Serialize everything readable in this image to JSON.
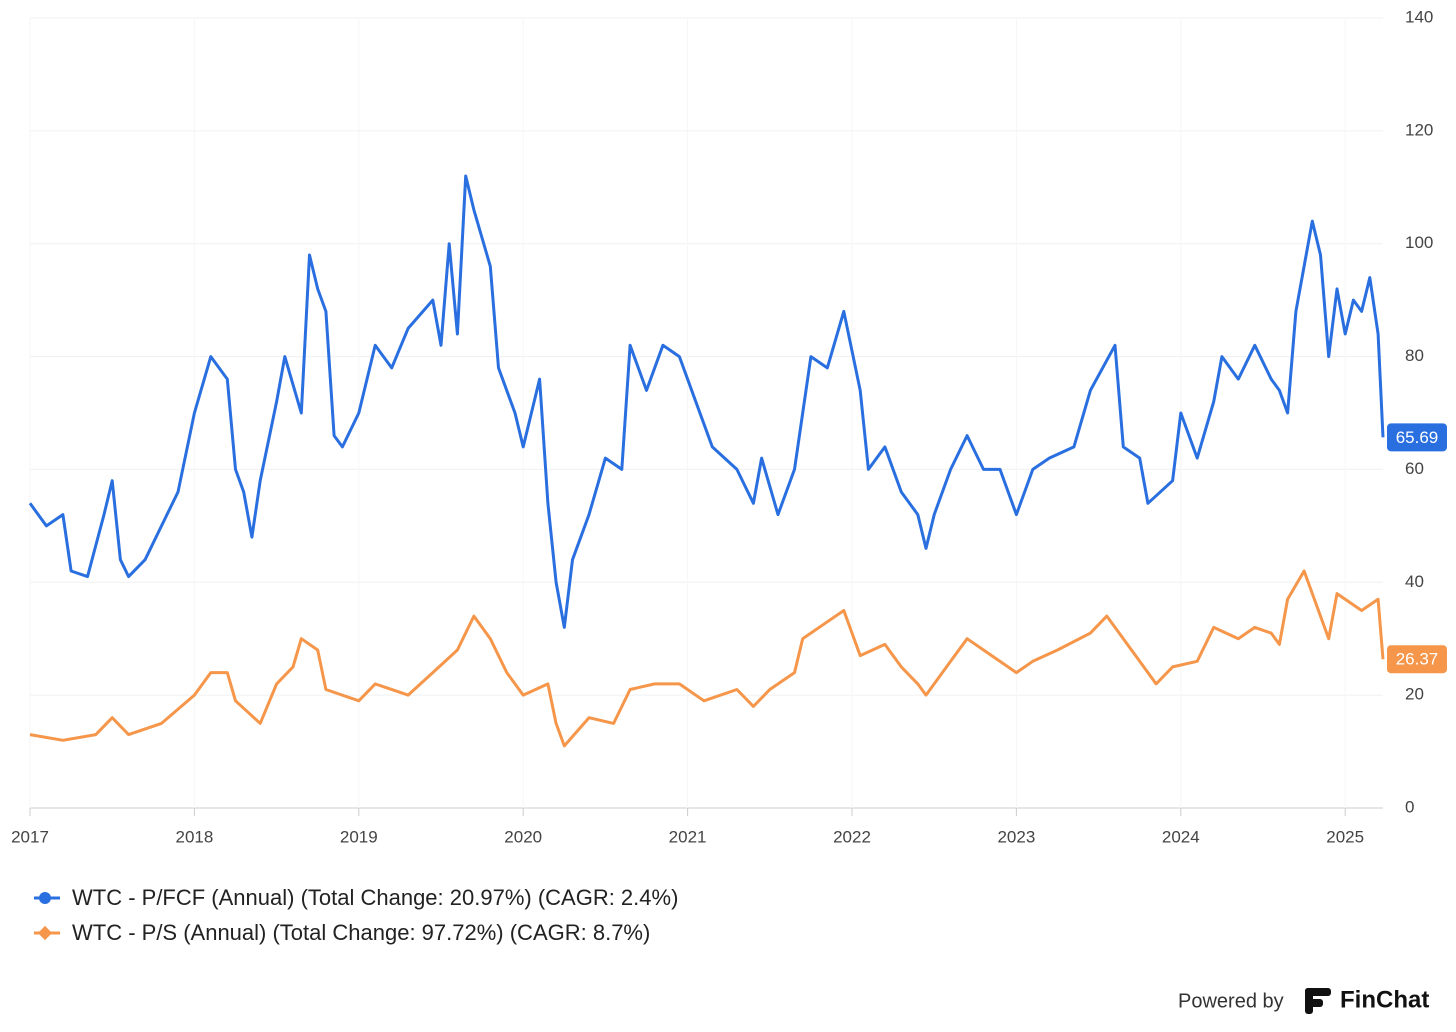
{
  "chart_data": {
    "type": "line",
    "xlim": [
      2017,
      2025.23
    ],
    "xticks": [
      2017,
      2018,
      2019,
      2020,
      2021,
      2022,
      2023,
      2024,
      2025
    ],
    "ylim": [
      0,
      140
    ],
    "yticks": [
      0,
      20,
      40,
      60,
      80,
      100,
      120,
      140
    ],
    "grid": true,
    "series": [
      {
        "name": "WTC - P/FCF (Annual) (Total Change: 20.97%) (CAGR: 2.4%)",
        "color": "#2a6fe0",
        "x": [
          2017.0,
          2017.1,
          2017.2,
          2017.25,
          2017.35,
          2017.45,
          2017.5,
          2017.55,
          2017.6,
          2017.7,
          2017.8,
          2017.9,
          2018.0,
          2018.1,
          2018.2,
          2018.25,
          2018.3,
          2018.35,
          2018.4,
          2018.5,
          2018.55,
          2018.65,
          2018.7,
          2018.75,
          2018.8,
          2018.85,
          2018.9,
          2019.0,
          2019.1,
          2019.2,
          2019.3,
          2019.45,
          2019.5,
          2019.55,
          2019.6,
          2019.65,
          2019.7,
          2019.8,
          2019.85,
          2019.95,
          2020.0,
          2020.1,
          2020.15,
          2020.2,
          2020.25,
          2020.3,
          2020.4,
          2020.5,
          2020.6,
          2020.65,
          2020.75,
          2020.85,
          2020.95,
          2021.05,
          2021.15,
          2021.3,
          2021.4,
          2021.45,
          2021.55,
          2021.65,
          2021.75,
          2021.85,
          2021.95,
          2022.05,
          2022.1,
          2022.2,
          2022.3,
          2022.4,
          2022.45,
          2022.5,
          2022.6,
          2022.7,
          2022.8,
          2022.9,
          2023.0,
          2023.1,
          2023.2,
          2023.35,
          2023.45,
          2023.6,
          2023.65,
          2023.75,
          2023.8,
          2023.95,
          2024.0,
          2024.1,
          2024.2,
          2024.25,
          2024.35,
          2024.45,
          2024.55,
          2024.6,
          2024.65,
          2024.7,
          2024.75,
          2024.8,
          2024.85,
          2024.9,
          2024.95,
          2025.0,
          2025.05,
          2025.1,
          2025.15,
          2025.2,
          2025.23
        ],
        "values": [
          54,
          50,
          52,
          42,
          41,
          52,
          58,
          44,
          41,
          44,
          50,
          56,
          70,
          80,
          76,
          60,
          56,
          48,
          58,
          72,
          80,
          70,
          98,
          92,
          88,
          66,
          64,
          70,
          82,
          78,
          85,
          90,
          82,
          100,
          84,
          112,
          106,
          96,
          78,
          70,
          64,
          76,
          54,
          40,
          32,
          44,
          52,
          62,
          60,
          82,
          74,
          82,
          80,
          72,
          64,
          60,
          54,
          62,
          52,
          60,
          80,
          78,
          88,
          74,
          60,
          64,
          56,
          52,
          46,
          52,
          60,
          66,
          60,
          60,
          52,
          60,
          62,
          64,
          74,
          82,
          64,
          62,
          54,
          58,
          70,
          62,
          72,
          80,
          76,
          82,
          76,
          74,
          70,
          88,
          96,
          104,
          98,
          80,
          92,
          84,
          90,
          88,
          94,
          84,
          65.69
        ]
      },
      {
        "name": "WTC - P/S (Annual) (Total Change: 97.72%) (CAGR: 8.7%)",
        "color": "#f5964a",
        "x": [
          2017.0,
          2017.2,
          2017.4,
          2017.5,
          2017.6,
          2017.8,
          2018.0,
          2018.1,
          2018.2,
          2018.25,
          2018.4,
          2018.5,
          2018.6,
          2018.65,
          2018.75,
          2018.8,
          2019.0,
          2019.1,
          2019.3,
          2019.45,
          2019.6,
          2019.7,
          2019.8,
          2019.9,
          2020.0,
          2020.15,
          2020.2,
          2020.25,
          2020.4,
          2020.55,
          2020.65,
          2020.8,
          2020.95,
          2021.1,
          2021.3,
          2021.4,
          2021.5,
          2021.65,
          2021.7,
          2021.85,
          2021.95,
          2022.05,
          2022.2,
          2022.3,
          2022.4,
          2022.45,
          2022.6,
          2022.7,
          2022.85,
          2023.0,
          2023.1,
          2023.25,
          2023.45,
          2023.55,
          2023.65,
          2023.75,
          2023.85,
          2023.95,
          2024.1,
          2024.2,
          2024.35,
          2024.45,
          2024.55,
          2024.6,
          2024.65,
          2024.75,
          2024.85,
          2024.9,
          2024.95,
          2025.1,
          2025.2,
          2025.23
        ],
        "values": [
          13,
          12,
          13,
          16,
          13,
          15,
          20,
          24,
          24,
          19,
          15,
          22,
          25,
          30,
          28,
          21,
          19,
          22,
          20,
          24,
          28,
          34,
          30,
          24,
          20,
          22,
          15,
          11,
          16,
          15,
          21,
          22,
          22,
          19,
          21,
          18,
          21,
          24,
          30,
          33,
          35,
          27,
          29,
          25,
          22,
          20,
          26,
          30,
          27,
          24,
          26,
          28,
          31,
          34,
          30,
          26,
          22,
          25,
          26,
          32,
          30,
          32,
          31,
          29,
          37,
          42,
          34,
          30,
          38,
          35,
          37,
          26.37
        ]
      }
    ]
  },
  "footer": {
    "powered_by": "Powered by",
    "brand": "FinChat"
  }
}
